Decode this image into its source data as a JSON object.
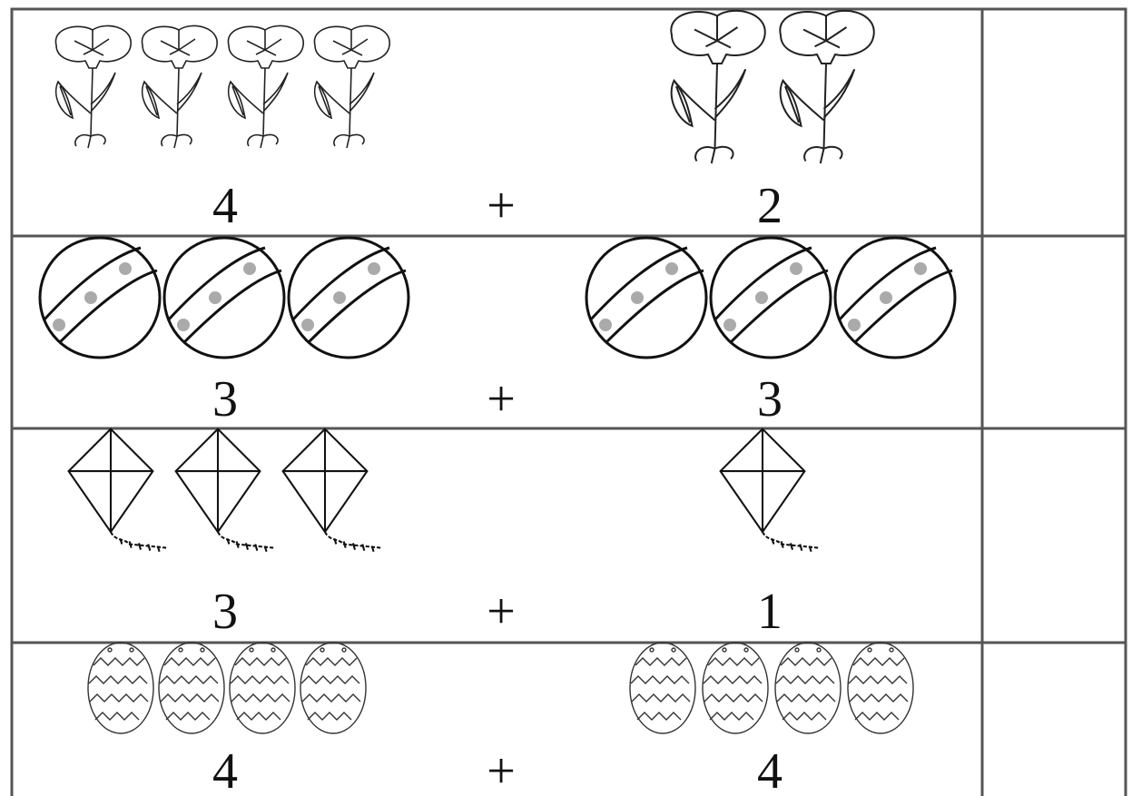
{
  "rows": [
    {
      "left": 4,
      "operator": "+",
      "right": 2
    },
    {
      "left": 3,
      "operator": "+",
      "right": 3
    },
    {
      "left": 3,
      "operator": "+",
      "right": 1
    },
    {
      "left": 4,
      "operator": "+",
      "right": 4
    }
  ]
}
